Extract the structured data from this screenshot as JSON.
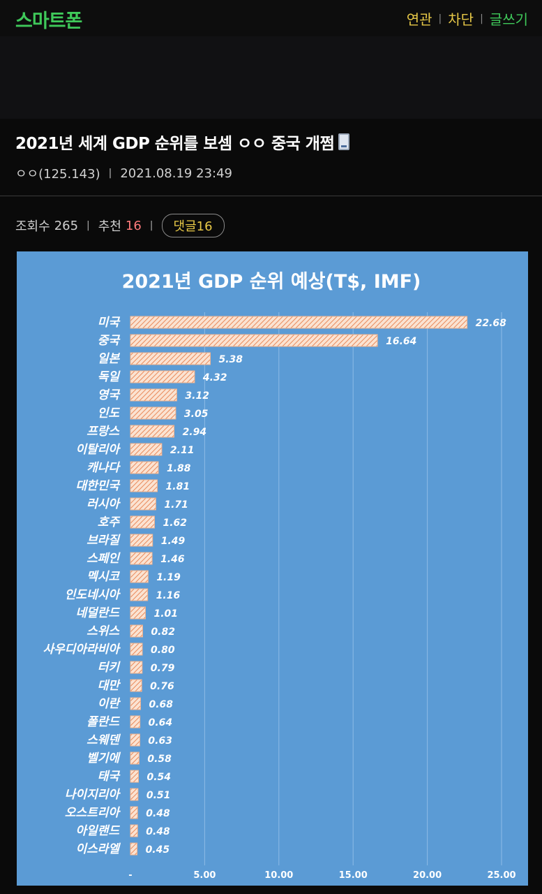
{
  "header": {
    "brand": "스마트폰",
    "nav": {
      "related": "연관",
      "block": "차단",
      "write": "글쓰기"
    }
  },
  "post": {
    "title": "2021년 세계 GDP 순위를 보셈 ㅇㅇ 중국 개쩜",
    "author": "ㅇㅇ(125.143)",
    "datetime": "2021.08.19 23:49",
    "views_label": "조회수",
    "views": "265",
    "recommend_label": "추천",
    "recommend": "16",
    "comments_label": "댓글",
    "comments": "16"
  },
  "colors": {
    "brand_green": "#3fc95a",
    "nav_yellow": "#e7c847",
    "chart_bg": "#5b9bd5",
    "bar_fill": "#f6c9a8"
  },
  "chart_data": {
    "type": "bar",
    "orientation": "horizontal",
    "title": "2021년 GDP 순위 예상(T$, IMF)",
    "categories": [
      "미국",
      "중국",
      "일본",
      "독일",
      "영국",
      "인도",
      "프랑스",
      "이탈리아",
      "캐나다",
      "대한민국",
      "러시아",
      "호주",
      "브라질",
      "스페인",
      "멕시코",
      "인도네시아",
      "네덜란드",
      "스위스",
      "사우디아라비아",
      "터키",
      "대만",
      "이란",
      "폴란드",
      "스웨덴",
      "벨기에",
      "태국",
      "나이지리아",
      "오스트리아",
      "아일랜드",
      "이스라엘"
    ],
    "values": [
      22.68,
      16.64,
      5.38,
      4.32,
      3.12,
      3.05,
      2.94,
      2.11,
      1.88,
      1.81,
      1.71,
      1.62,
      1.49,
      1.46,
      1.19,
      1.16,
      1.01,
      0.82,
      0.8,
      0.79,
      0.76,
      0.68,
      0.64,
      0.63,
      0.58,
      0.54,
      0.51,
      0.48,
      0.48,
      0.45
    ],
    "value_labels": [
      "22.68",
      "16.64",
      "5.38",
      "4.32",
      "3.12",
      "3.05",
      "2.94",
      "2.11",
      "1.88",
      "1.81",
      "1.71",
      "1.62",
      "1.49",
      "1.46",
      "1.19",
      "1.16",
      "1.01",
      "0.82",
      "0.80",
      "0.79",
      "0.76",
      "0.68",
      "0.64",
      "0.63",
      "0.58",
      "0.54",
      "0.51",
      "0.48",
      "0.48",
      "0.45"
    ],
    "x_ticks": [
      "-",
      "5.00",
      "10.00",
      "15.00",
      "20.00",
      "25.00"
    ],
    "xlim": [
      0,
      25
    ],
    "grid": "vertical",
    "legend": "none"
  }
}
